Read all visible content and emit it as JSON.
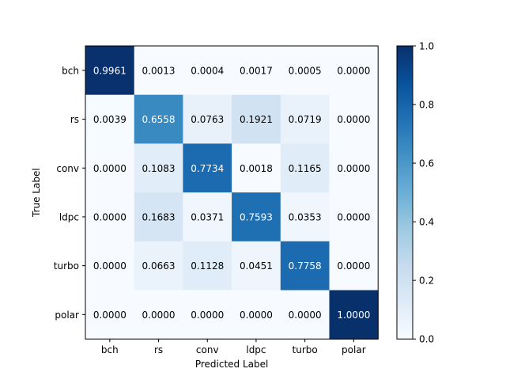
{
  "chart_data": {
    "type": "heatmap",
    "title": "",
    "xlabel": "Predicted Label",
    "ylabel": "True Label",
    "x_categories": [
      "bch",
      "rs",
      "conv",
      "ldpc",
      "turbo",
      "polar"
    ],
    "y_categories": [
      "bch",
      "rs",
      "conv",
      "ldpc",
      "turbo",
      "polar"
    ],
    "values": [
      [
        0.9961,
        0.0013,
        0.0004,
        0.0017,
        0.0005,
        0.0
      ],
      [
        0.0039,
        0.6558,
        0.0763,
        0.1921,
        0.0719,
        0.0
      ],
      [
        0.0,
        0.1083,
        0.7734,
        0.0018,
        0.1165,
        0.0
      ],
      [
        0.0,
        0.1683,
        0.0371,
        0.7593,
        0.0353,
        0.0
      ],
      [
        0.0,
        0.0663,
        0.1128,
        0.0451,
        0.7758,
        0.0
      ],
      [
        0.0,
        0.0,
        0.0,
        0.0,
        0.0,
        1.0
      ]
    ],
    "value_labels": [
      [
        "0.9961",
        "0.0013",
        "0.0004",
        "0.0017",
        "0.0005",
        "0.0000"
      ],
      [
        "0.0039",
        "0.6558",
        "0.0763",
        "0.1921",
        "0.0719",
        "0.0000"
      ],
      [
        "0.0000",
        "0.1083",
        "0.7734",
        "0.0018",
        "0.1165",
        "0.0000"
      ],
      [
        "0.0000",
        "0.1683",
        "0.0371",
        "0.7593",
        "0.0353",
        "0.0000"
      ],
      [
        "0.0000",
        "0.0663",
        "0.1128",
        "0.0451",
        "0.7758",
        "0.0000"
      ],
      [
        "0.0000",
        "0.0000",
        "0.0000",
        "0.0000",
        "0.0000",
        "1.0000"
      ]
    ],
    "colormap": "Blues",
    "colorbar": {
      "range": [
        0.0,
        1.0
      ],
      "ticks": [
        0.0,
        0.2,
        0.4,
        0.6,
        0.8,
        1.0
      ],
      "tick_labels": [
        "0.0",
        "0.2",
        "0.4",
        "0.6",
        "0.8",
        "1.0"
      ]
    },
    "grid": false
  }
}
